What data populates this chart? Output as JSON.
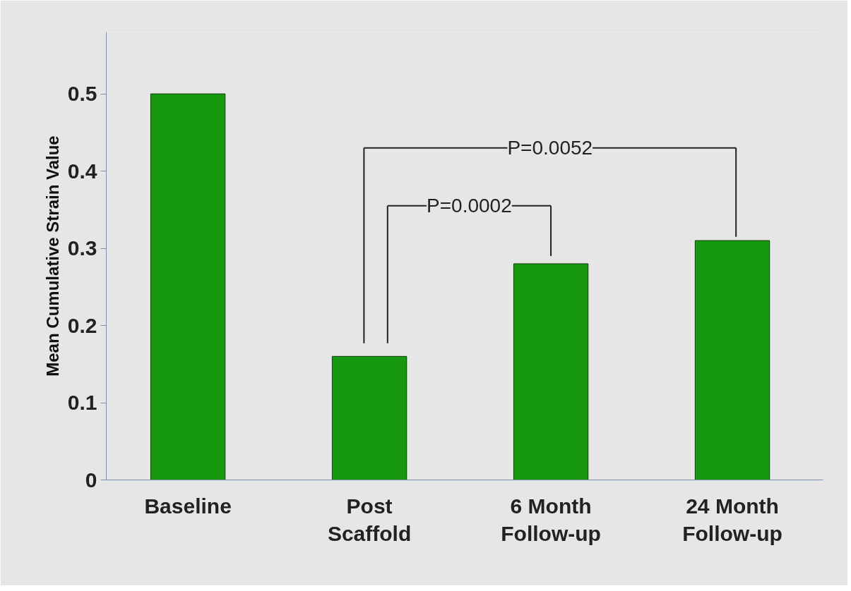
{
  "chart_data": {
    "type": "bar",
    "ylabel": "Mean Cumulative Strain Value",
    "categories": [
      "Baseline",
      "Post\nScaffold",
      "6 Month\nFollow-up",
      "24 Month\nFollow-up"
    ],
    "values": [
      0.5,
      0.16,
      0.28,
      0.31
    ],
    "color": "#17990f",
    "ylim": [
      0,
      0.58
    ],
    "yticks": [
      0,
      0.1,
      0.2,
      0.3,
      0.4,
      0.5
    ],
    "annotations": [
      "P=0.0002",
      "P=0.0052"
    ]
  }
}
